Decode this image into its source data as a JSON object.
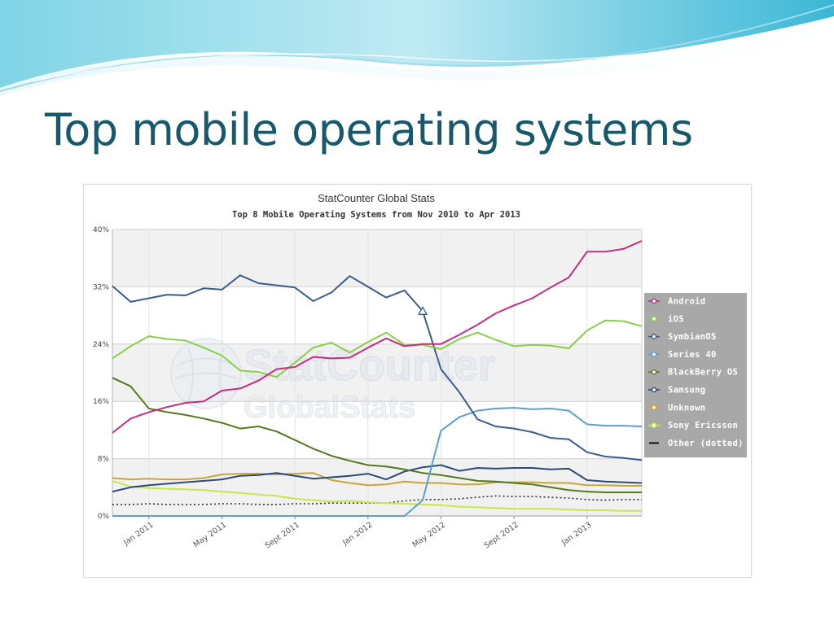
{
  "slide": {
    "title": "Top mobile operating systems"
  },
  "colors": {
    "title": "#17596b",
    "legend_bg": "#a8a8a8",
    "band": "#f1f1f1",
    "grid": "#d0d0d0"
  },
  "watermark": {
    "line1": "StatCounter",
    "line2": "GlobalStats"
  },
  "chart_data": {
    "type": "line",
    "title": "StatCounter Global Stats",
    "subtitle": "Top 8 Mobile Operating Systems from Nov 2010 to Apr 2013",
    "x_range": [
      "2010-11",
      "2013-04"
    ],
    "x": [
      "2010-11",
      "2010-12",
      "2011-01",
      "2011-02",
      "2011-03",
      "2011-04",
      "2011-05",
      "2011-06",
      "2011-07",
      "2011-08",
      "2011-09",
      "2011-10",
      "2011-11",
      "2011-12",
      "2012-01",
      "2012-02",
      "2012-03",
      "2012-04",
      "2012-05",
      "2012-06",
      "2012-07",
      "2012-08",
      "2012-09",
      "2012-10",
      "2012-11",
      "2012-12",
      "2013-01",
      "2013-02",
      "2013-03",
      "2013-04"
    ],
    "x_ticks": [
      "Jan 2011",
      "May 2011",
      "Sept 2011",
      "Jan 2012",
      "May 2012",
      "Sept 2012",
      "Jan 2013"
    ],
    "y_ticks": [
      "0%",
      "8%",
      "16%",
      "24%",
      "32%",
      "40%"
    ],
    "ylim": [
      0,
      40
    ],
    "legend_position": "right",
    "series": [
      {
        "name": "Android",
        "color": "#c4307f",
        "marker": "circle",
        "values": [
          11.6,
          13.6,
          14.5,
          15.2,
          15.8,
          16.0,
          17.5,
          17.8,
          18.9,
          20.5,
          20.8,
          22.2,
          22.0,
          22.1,
          23.5,
          24.8,
          23.7,
          24.0,
          24.0,
          25.3,
          26.7,
          28.3,
          29.4,
          30.4,
          31.9,
          33.3,
          36.9,
          36.9,
          37.3,
          38.4
        ]
      },
      {
        "name": "iOS",
        "color": "#89cf4a",
        "marker": "circle",
        "values": [
          22.0,
          23.7,
          25.1,
          24.7,
          24.5,
          23.5,
          22.4,
          20.3,
          20.1,
          19.4,
          21.4,
          23.5,
          24.2,
          22.8,
          24.3,
          25.6,
          23.9,
          23.9,
          23.3,
          24.7,
          25.6,
          24.6,
          23.7,
          23.9,
          23.8,
          23.4,
          25.9,
          27.3,
          27.2,
          26.5
        ]
      },
      {
        "name": "SymbianOS",
        "color": "#3c5c8f",
        "marker": "circle",
        "values": [
          32.1,
          29.9,
          30.4,
          30.9,
          30.8,
          31.8,
          31.6,
          33.6,
          32.5,
          32.2,
          31.9,
          30.0,
          31.2,
          33.5,
          32.0,
          30.5,
          31.5,
          28.6,
          20.5,
          17.3,
          13.5,
          12.5,
          12.2,
          11.7,
          10.9,
          10.7,
          8.9,
          8.3,
          8.1,
          7.8
        ]
      },
      {
        "name": "Series 40",
        "color": "#5c9fd0",
        "marker": "circle",
        "values": [
          0,
          0,
          0,
          0,
          0,
          0,
          0,
          0,
          0,
          0,
          0,
          0,
          0,
          0,
          0,
          0,
          0,
          2.2,
          11.9,
          13.8,
          14.7,
          15.0,
          15.1,
          14.9,
          15.0,
          14.7,
          12.8,
          12.6,
          12.6,
          12.5
        ]
      },
      {
        "name": "BlackBerry OS",
        "color": "#567a1e",
        "marker": "circle",
        "values": [
          19.3,
          18.1,
          15.0,
          14.5,
          14.1,
          13.6,
          13.0,
          12.2,
          12.5,
          11.8,
          10.6,
          9.4,
          8.4,
          7.7,
          7.1,
          6.9,
          6.5,
          6.0,
          5.7,
          5.3,
          4.9,
          4.8,
          4.6,
          4.4,
          4.0,
          3.6,
          3.4,
          3.3,
          3.3,
          3.3
        ]
      },
      {
        "name": "Samsung",
        "color": "#2d4a79",
        "marker": "circle",
        "values": [
          3.4,
          4.0,
          4.3,
          4.5,
          4.7,
          4.9,
          5.1,
          5.6,
          5.7,
          6.0,
          5.6,
          5.2,
          5.4,
          5.6,
          5.9,
          5.1,
          6.2,
          6.8,
          7.1,
          6.3,
          6.7,
          6.6,
          6.7,
          6.7,
          6.5,
          6.6,
          5.0,
          4.8,
          4.7,
          4.6
        ]
      },
      {
        "name": "Unknown",
        "color": "#c9a53a",
        "marker": "circle",
        "values": [
          5.3,
          5.1,
          5.2,
          5.1,
          5.1,
          5.3,
          5.8,
          5.9,
          5.9,
          5.8,
          5.9,
          6.0,
          5.0,
          4.6,
          4.3,
          4.4,
          4.8,
          4.6,
          4.6,
          4.4,
          4.4,
          4.7,
          4.7,
          4.7,
          4.6,
          4.6,
          4.3,
          4.3,
          4.2,
          4.2
        ]
      },
      {
        "name": "Sony Ericsson",
        "color": "#c5e84d",
        "marker": "circle",
        "values": [
          4.9,
          4.1,
          3.9,
          3.8,
          3.7,
          3.6,
          3.4,
          3.2,
          3.0,
          2.8,
          2.4,
          2.2,
          2.0,
          2.1,
          1.9,
          1.8,
          1.7,
          1.6,
          1.5,
          1.3,
          1.2,
          1.1,
          1.0,
          1.0,
          1.0,
          0.9,
          0.8,
          0.8,
          0.7,
          0.7
        ]
      },
      {
        "name": "Other (dotted)",
        "color": "#333333",
        "marker": "dash",
        "dotted": true,
        "values": [
          1.6,
          1.6,
          1.7,
          1.6,
          1.6,
          1.6,
          1.7,
          1.7,
          1.6,
          1.6,
          1.7,
          1.7,
          1.8,
          1.8,
          1.8,
          1.8,
          2.1,
          2.3,
          2.3,
          2.4,
          2.6,
          2.8,
          2.7,
          2.7,
          2.6,
          2.5,
          2.3,
          2.2,
          2.3,
          2.3
        ]
      }
    ],
    "annotations": [
      {
        "series": "SymbianOS",
        "x": "2012-04",
        "marker": "triangle"
      }
    ]
  }
}
